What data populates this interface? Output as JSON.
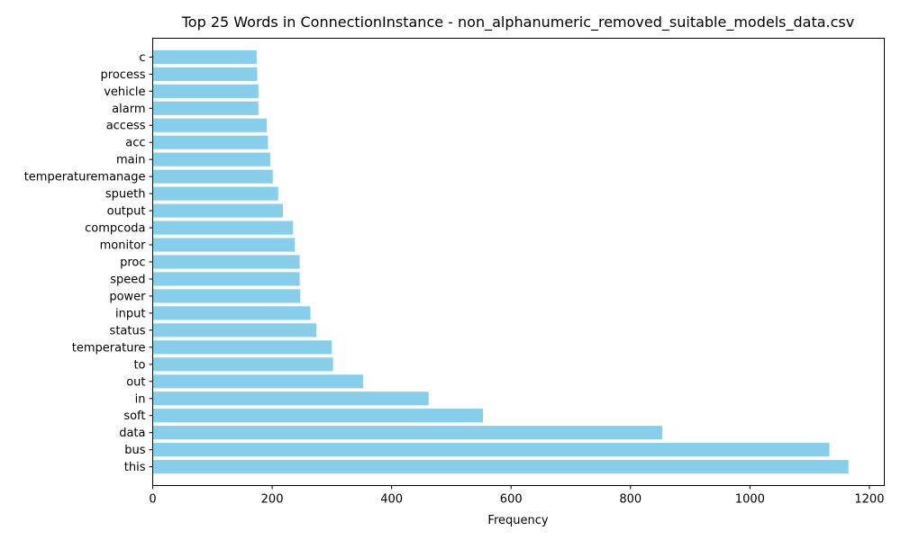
{
  "chart_data": {
    "type": "bar",
    "orientation": "horizontal",
    "title": "Top 25 Words in ConnectionInstance - non_alphanumeric_removed_suitable_models_data.csv",
    "xlabel": "Frequency",
    "ylabel": "",
    "xlim": [
      0,
      1225
    ],
    "x_ticks": [
      0,
      200,
      400,
      600,
      800,
      1000,
      1200
    ],
    "categories": [
      "this",
      "bus",
      "data",
      "soft",
      "in",
      "out",
      "to",
      "temperature",
      "status",
      "input",
      "power",
      "speed",
      "proc",
      "monitor",
      "compcoda",
      "output",
      "spueth",
      "temperaturemanage",
      "main",
      "acc",
      "access",
      "alarm",
      "vehicle",
      "process",
      "c"
    ],
    "values": [
      1165,
      1133,
      853,
      553,
      462,
      352,
      302,
      300,
      274,
      264,
      247,
      246,
      246,
      238,
      235,
      218,
      210,
      201,
      197,
      193,
      191,
      177,
      177,
      175,
      174
    ],
    "bar_color": "#87ceeb",
    "grid": false,
    "legend": "none"
  }
}
